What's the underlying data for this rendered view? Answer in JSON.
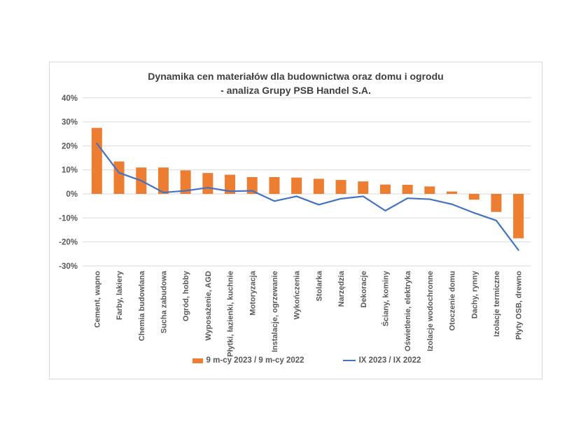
{
  "chart": {
    "title_line1": "Dynamika cen materiałów dla budownictwa oraz domu i ogrodu",
    "title_line2": "- analiza Grupy PSB Handel S.A."
  },
  "chart_data": {
    "type": "bar",
    "title": "Dynamika cen materiałów dla budownictwa oraz domu i ogrodu - analiza Grupy PSB Handel S.A.",
    "categories": [
      "Cement, wapno",
      "Farby, lakiery",
      "Chemia budowlana",
      "Sucha zabudowa",
      "Ogród, hobby",
      "Wyposażenie, AGD",
      "Płytki, łazienki, kuchnie",
      "Motoryzacja",
      "Instalacje, ogrzewanie",
      "Wykończenia",
      "Stolarka",
      "Narzędzia",
      "Dekoracje",
      "Ściany, kominy",
      "Oświetlenie, elektryka",
      "Izolacje wodochronne",
      "Otoczenie domu",
      "Dachy, rynny",
      "Izolacje termiczne",
      "Płyty OSB, drewno"
    ],
    "series": [
      {
        "name": "9 m-cy 2023 / 9 m-cy 2022",
        "type": "bar",
        "color": "#ED7D31",
        "values": [
          27.5,
          13.5,
          11,
          11,
          9.8,
          8.7,
          8,
          7,
          7,
          6.8,
          6.3,
          5.8,
          5.2,
          3.9,
          3.8,
          3.1,
          1,
          -2.4,
          -7.5,
          -18.5
        ]
      },
      {
        "name": "IX 2023 / IX 2022",
        "type": "line",
        "color": "#4472C4",
        "values": [
          21,
          8.8,
          5.5,
          0.6,
          1.3,
          2.6,
          1.1,
          1.3,
          -3,
          -1,
          -4.5,
          -2,
          -1,
          -7,
          -1.8,
          -2.2,
          -4.3,
          -7.9,
          -11.1,
          -23.4
        ]
      }
    ],
    "ylim": [
      -30,
      40
    ],
    "yticks": [
      40,
      30,
      20,
      10,
      0,
      -10,
      -20,
      -30
    ],
    "ytick_labels": [
      "40%",
      "30%",
      "20%",
      "10%",
      "0%",
      "-10%",
      "-20%",
      "-30%"
    ],
    "grid": true,
    "legend_position": "bottom"
  },
  "colors": {
    "bar": "#ED7D31",
    "line": "#4472C4",
    "grid": "#D9D9D9",
    "frame": "#D9D9D9",
    "tick_text": "#595959",
    "category_text": "#595959",
    "title_text": "#404040",
    "background": "#FFFFFF"
  }
}
